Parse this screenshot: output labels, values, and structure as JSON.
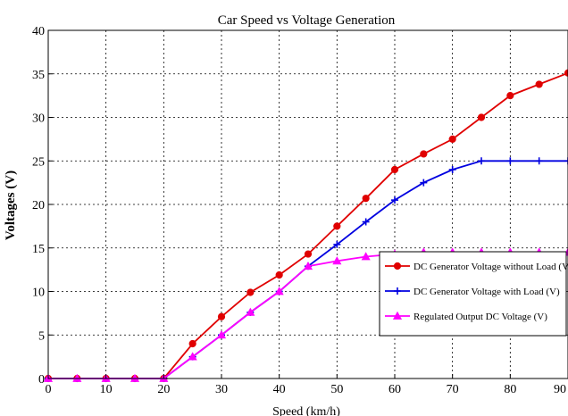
{
  "chart_data": {
    "type": "line",
    "title": "Car Speed  vs  Voltage Generation",
    "xlabel": "Speed (km/h)",
    "ylabel": "Voltages (V)",
    "xlim": [
      0,
      90
    ],
    "ylim": [
      0,
      40
    ],
    "x_ticks": [
      "0",
      "10",
      "20",
      "30",
      "40",
      "50",
      "60",
      "70",
      "80",
      "90"
    ],
    "y_ticks": [
      "0",
      "5",
      "10",
      "15",
      "20",
      "25",
      "30",
      "35",
      "40"
    ],
    "grid": true,
    "legend_position": "lower-right",
    "x": [
      0,
      5,
      10,
      15,
      20,
      25,
      30,
      35,
      40,
      45,
      50,
      55,
      60,
      65,
      70,
      75,
      80,
      85,
      90
    ],
    "series": [
      {
        "name": "DC Generator Voltage without Load (V)",
        "color": "#e00000",
        "marker": "circle",
        "values": [
          0,
          0,
          0,
          0,
          0,
          4,
          7.1,
          9.9,
          11.9,
          14.3,
          17.5,
          20.7,
          24.0,
          25.8,
          27.5,
          30.0,
          32.5,
          33.8,
          35.1
        ]
      },
      {
        "name": "DC Generator Voltage with Load (V)",
        "color": "#0000e0",
        "marker": "plus",
        "values": [
          0,
          0,
          0,
          0,
          0,
          2.5,
          5.0,
          7.6,
          10.0,
          12.9,
          15.4,
          18.0,
          20.5,
          22.5,
          24.0,
          25.0,
          25.0,
          25.0,
          25.0
        ]
      },
      {
        "name": "Regulated Output DC Voltage (V)",
        "color": "#ff00ff",
        "marker": "triangle",
        "values": [
          0,
          0,
          0,
          0,
          0,
          2.5,
          5.0,
          7.6,
          10.0,
          12.9,
          13.5,
          14.0,
          14.3,
          14.5,
          14.5,
          14.5,
          14.5,
          14.5,
          14.5
        ]
      }
    ]
  }
}
